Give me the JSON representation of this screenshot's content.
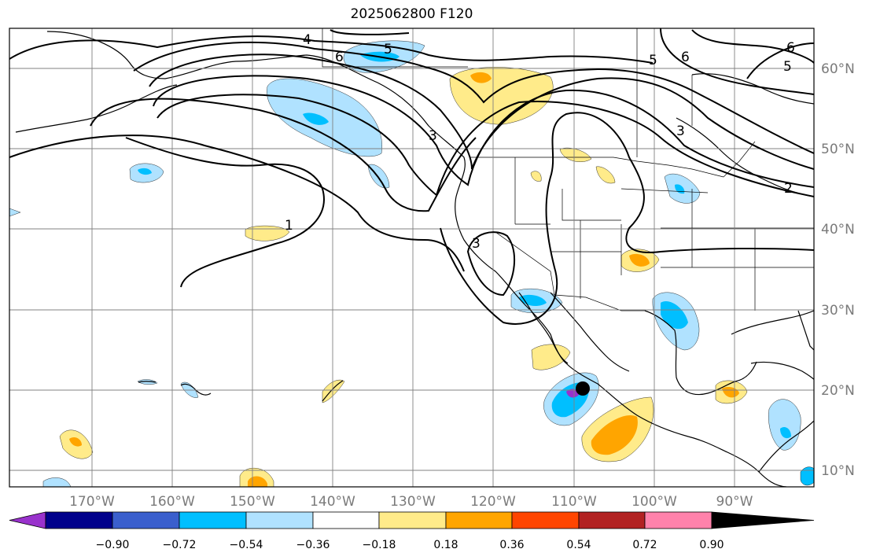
{
  "title": "2025062800 F120",
  "map": {
    "lon_labels": [
      "170°W",
      "160°W",
      "150°W",
      "140°W",
      "130°W",
      "120°W",
      "110°W",
      "100°W",
      "90°W"
    ],
    "lat_labels": [
      "60°N",
      "50°N",
      "40°N",
      "30°N",
      "20°N",
      "10°N"
    ],
    "contour_labels": [
      "4",
      "5",
      "6",
      "5",
      "6",
      "6",
      "5",
      "3",
      "1",
      "3",
      "3",
      "2"
    ],
    "marker": "storm-center-dot"
  },
  "colorbar": {
    "ticks": [
      "−0.90",
      "−0.72",
      "−0.54",
      "−0.36",
      "−0.18",
      "0.18",
      "0.36",
      "0.54",
      "0.72",
      "0.90"
    ],
    "colors": [
      "#9932cc",
      "#00008b",
      "#3a5fcd",
      "#00bfff",
      "#b0e2ff",
      "#ffffff",
      "#ffeb8a",
      "#ffa500",
      "#ff4500",
      "#b22222",
      "#ff82ab"
    ]
  }
}
